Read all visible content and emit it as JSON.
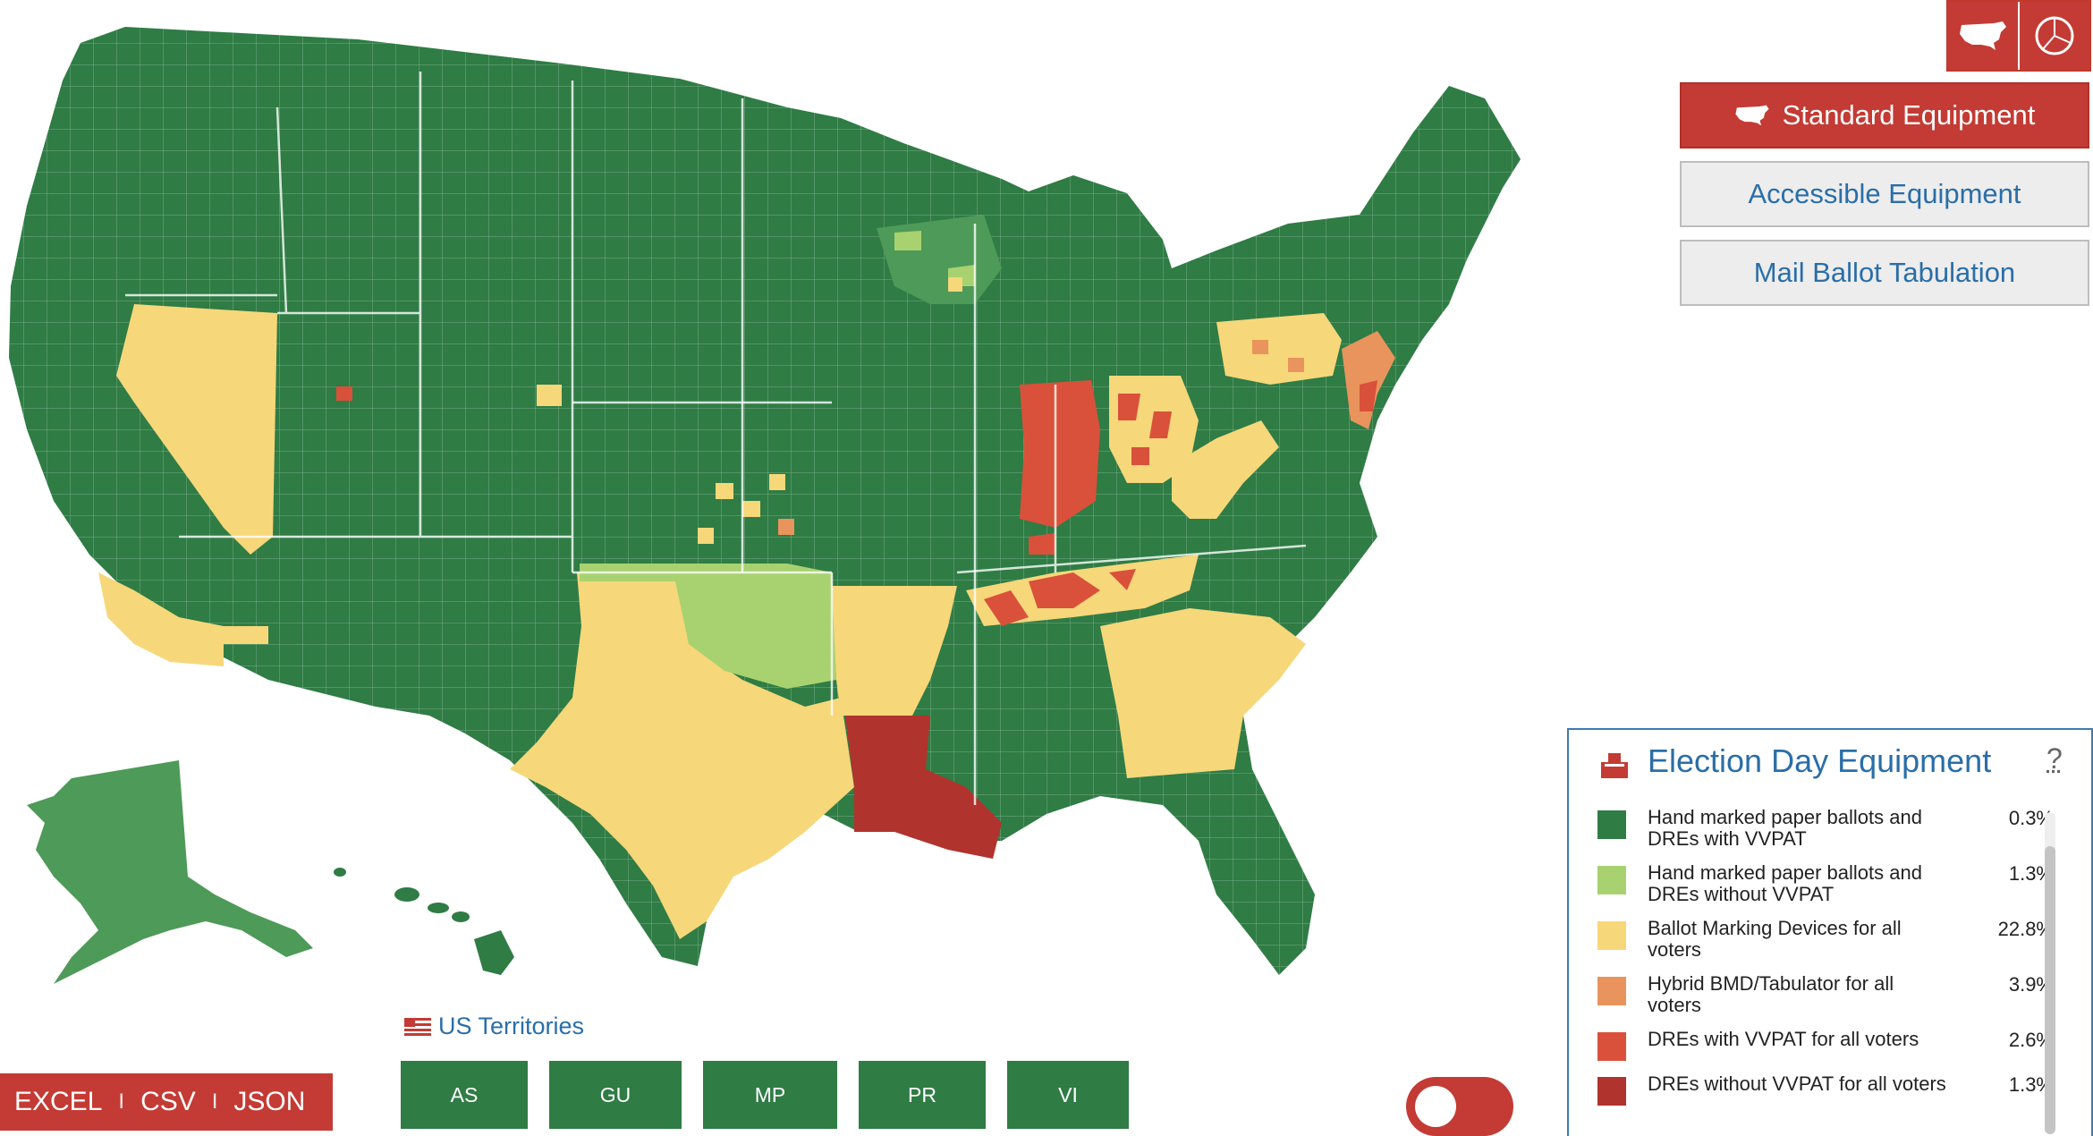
{
  "view_toggle": {
    "map_icon": "us-map-icon",
    "pie_icon": "pie-chart-icon",
    "active": "map"
  },
  "equipment_tabs": [
    {
      "label": "Standard Equipment",
      "active": true
    },
    {
      "label": "Accessible Equipment",
      "active": false
    },
    {
      "label": "Mail Ballot Tabulation",
      "active": false
    }
  ],
  "legend": {
    "title": "Election Day Equipment",
    "help": "?",
    "icon": "ballot-box-icon",
    "items": [
      {
        "label_line1": "Hand marked paper ballots and",
        "label_line2": "DREs with VVPAT",
        "pct": "0.3%",
        "color": "#2f7c45"
      },
      {
        "label_line1": "Hand marked paper ballots and",
        "label_line2": "DREs without VVPAT",
        "pct": "1.3%",
        "color": "#a8d26f"
      },
      {
        "label_line1": "Ballot Marking Devices for all",
        "label_line2": "voters",
        "pct": "22.8%",
        "color": "#f6d77a"
      },
      {
        "label_line1": "Hybrid BMD/Tabulator for all",
        "label_line2": "voters",
        "pct": "3.9%",
        "color": "#e9945c"
      },
      {
        "label_line1": "DREs with VVPAT for all voters",
        "label_line2": "",
        "pct": "2.6%",
        "color": "#d9513a"
      },
      {
        "label_line1": "DREs without VVPAT for all voters",
        "label_line2": "",
        "pct": "1.3%",
        "color": "#b1332d"
      }
    ]
  },
  "territories": {
    "title": "US Territories",
    "flag_icon": "us-flag-icon",
    "buttons": [
      "AS",
      "GU",
      "MP",
      "PR",
      "VI"
    ]
  },
  "export": {
    "links": [
      "EXCEL",
      "CSV",
      "JSON"
    ],
    "separator": "I"
  },
  "toggle": {
    "state": "off"
  },
  "map_colors": {
    "dark_green": "#2f7c45",
    "light_green": "#a8d26f",
    "yellow": "#f6d77a",
    "orange": "#e9945c",
    "red": "#d9513a",
    "dark_red": "#b1332d",
    "alaska_green": "#4e9a58"
  }
}
